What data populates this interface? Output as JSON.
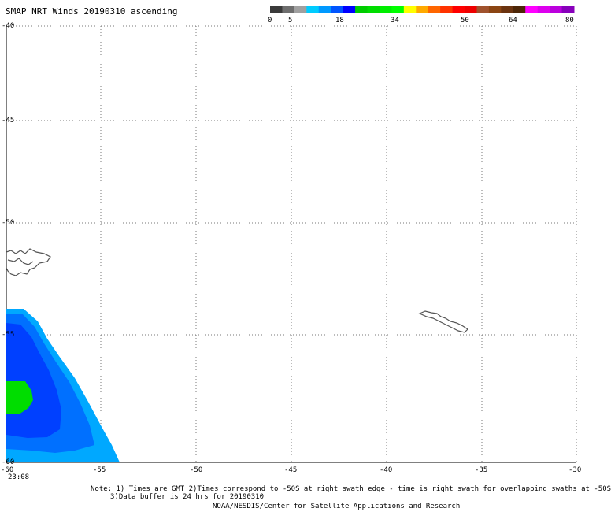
{
  "title": "SMAP NRT Winds 20190310 ascending",
  "colorbar": {
    "labels": [
      "0",
      "5",
      "18",
      "34",
      "50",
      "64",
      "80"
    ],
    "segments": [
      "#3a3a3a",
      "#6e6e6e",
      "#a0a0a0",
      "#00ccff",
      "#0099ff",
      "#0055ff",
      "#0000ff",
      "#00cc00",
      "#00dd00",
      "#00ee00",
      "#00ff00",
      "#ffff00",
      "#ffaa00",
      "#ff6600",
      "#ff3300",
      "#ff0000",
      "#ee0000",
      "#a0522d",
      "#8b4513",
      "#6b3410",
      "#4d2608",
      "#ff00ff",
      "#dd00ee",
      "#bb00dd",
      "#8800bb"
    ]
  },
  "map": {
    "lon_ticks": [
      "-60",
      "-55",
      "-50",
      "-45",
      "-40",
      "-35",
      "-30"
    ],
    "lat_ticks": [
      "-40",
      "-45",
      "-50",
      "-55",
      "-60"
    ]
  },
  "time_label": "23:08",
  "notes": {
    "line1": "Note: 1) Times are GMT 2)Times correspond to -50S at right swath edge - time is right swath for overlapping swaths at -50S",
    "line2": "3)Data buffer is 24 hrs for 20190310",
    "credit": "NOAA/NESDIS/Center for Satellite Applications and Research"
  }
}
